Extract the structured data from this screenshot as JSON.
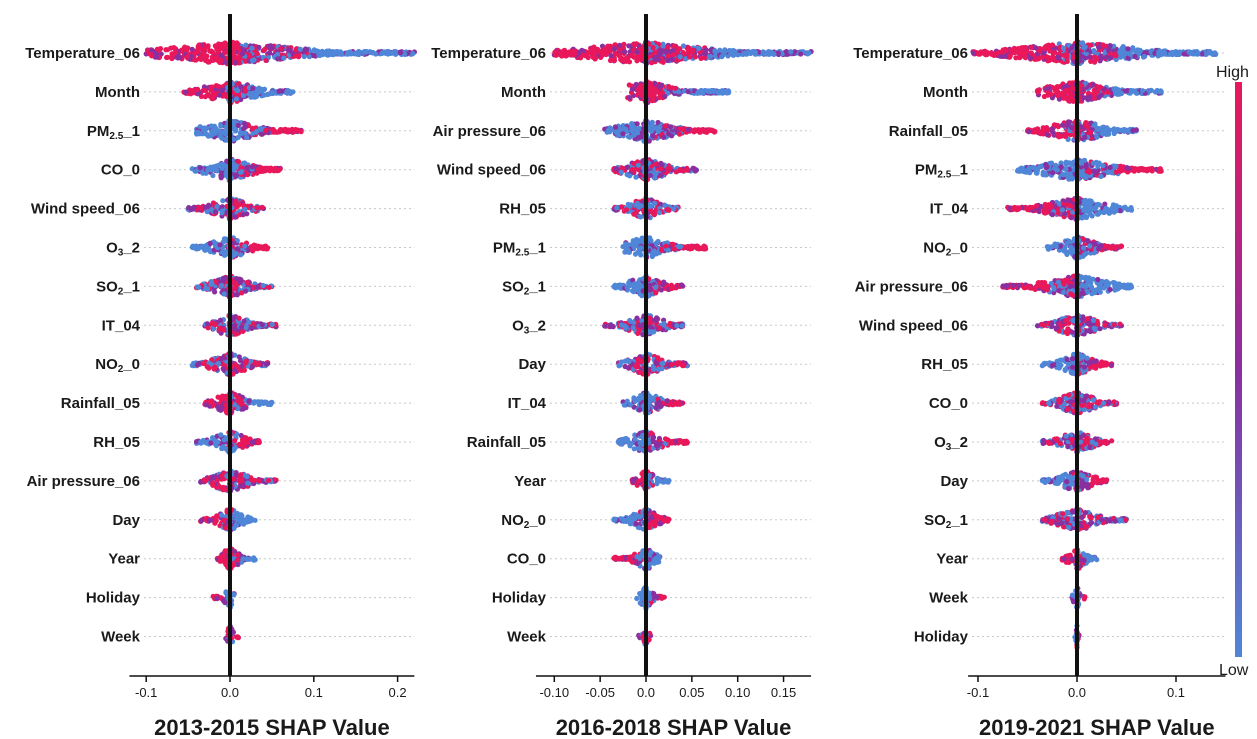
{
  "chart_data": [
    {
      "type": "scatter",
      "subtype": "shap-beeswarm",
      "xlabel": "2013-2015 SHAP Value",
      "xlim": [
        -0.12,
        0.22
      ],
      "xticks": [
        -0.1,
        0.0,
        0.1,
        0.2
      ],
      "xtick_labels": [
        "-0.1",
        "0.0",
        "0.1",
        "0.2"
      ],
      "features": [
        {
          "label": "Temperature_06",
          "min": -0.1,
          "max": 0.22,
          "lo_color": "high"
        },
        {
          "label": "Month",
          "min": -0.055,
          "max": 0.075,
          "lo_color": "high"
        },
        {
          "label": "PM2.5_1",
          "min": -0.04,
          "max": 0.085,
          "lo_color": "low"
        },
        {
          "label": "CO_0",
          "min": -0.045,
          "max": 0.06,
          "lo_color": "low"
        },
        {
          "label": "Wind speed_06",
          "min": -0.05,
          "max": 0.04,
          "lo_color": "mixed"
        },
        {
          "label": "O3_2",
          "min": -0.045,
          "max": 0.045,
          "lo_color": "low"
        },
        {
          "label": "SO2_1",
          "min": -0.04,
          "max": 0.05,
          "lo_color": "mixed"
        },
        {
          "label": "IT_04",
          "min": -0.03,
          "max": 0.055,
          "lo_color": "mixed"
        },
        {
          "label": "NO2_0",
          "min": -0.045,
          "max": 0.045,
          "lo_color": "mixed"
        },
        {
          "label": "Rainfall_05",
          "min": -0.03,
          "max": 0.05,
          "lo_color": "high"
        },
        {
          "label": "RH_05",
          "min": -0.04,
          "max": 0.035,
          "lo_color": "low"
        },
        {
          "label": "Air pressure_06",
          "min": -0.035,
          "max": 0.055,
          "lo_color": "mixed"
        },
        {
          "label": "Day",
          "min": -0.035,
          "max": 0.03,
          "lo_color": "high"
        },
        {
          "label": "Year",
          "min": -0.015,
          "max": 0.03,
          "lo_color": "high"
        },
        {
          "label": "Holiday",
          "min": -0.02,
          "max": 0.005,
          "lo_color": "high"
        },
        {
          "label": "Week",
          "min": -0.005,
          "max": 0.01,
          "lo_color": "mixed"
        }
      ]
    },
    {
      "type": "scatter",
      "subtype": "shap-beeswarm",
      "xlabel": "2016-2018 SHAP Value",
      "xlim": [
        -0.12,
        0.18
      ],
      "xticks": [
        -0.1,
        -0.05,
        0.0,
        0.05,
        0.1,
        0.15
      ],
      "xtick_labels": [
        "-0.10",
        "-0.05",
        "0.0",
        "0.05",
        "0.10",
        "0.15"
      ],
      "features": [
        {
          "label": "Temperature_06",
          "min": -0.1,
          "max": 0.18,
          "lo_color": "high"
        },
        {
          "label": "Month",
          "min": -0.02,
          "max": 0.09,
          "lo_color": "high"
        },
        {
          "label": "Air pressure_06",
          "min": -0.045,
          "max": 0.075,
          "lo_color": "low"
        },
        {
          "label": "Wind speed_06",
          "min": -0.035,
          "max": 0.055,
          "lo_color": "mixed"
        },
        {
          "label": "RH_05",
          "min": -0.035,
          "max": 0.035,
          "lo_color": "mixed"
        },
        {
          "label": "PM2.5_1",
          "min": -0.025,
          "max": 0.065,
          "lo_color": "low"
        },
        {
          "label": "SO2_1",
          "min": -0.035,
          "max": 0.04,
          "lo_color": "low"
        },
        {
          "label": "O3_2",
          "min": -0.045,
          "max": 0.04,
          "lo_color": "mixed"
        },
        {
          "label": "Day",
          "min": -0.03,
          "max": 0.045,
          "lo_color": "mixed"
        },
        {
          "label": "IT_04",
          "min": -0.025,
          "max": 0.04,
          "lo_color": "low"
        },
        {
          "label": "Rainfall_05",
          "min": -0.03,
          "max": 0.045,
          "lo_color": "low"
        },
        {
          "label": "Year",
          "min": -0.015,
          "max": 0.025,
          "lo_color": "high"
        },
        {
          "label": "NO2_0",
          "min": -0.035,
          "max": 0.025,
          "lo_color": "low"
        },
        {
          "label": "CO_0",
          "min": -0.035,
          "max": 0.015,
          "lo_color": "high"
        },
        {
          "label": "Holiday",
          "min": -0.01,
          "max": 0.02,
          "lo_color": "low"
        },
        {
          "label": "Week",
          "min": -0.008,
          "max": 0.005,
          "lo_color": "mixed"
        }
      ]
    },
    {
      "type": "scatter",
      "subtype": "shap-beeswarm",
      "xlabel": "2019-2021 SHAP Value",
      "xlim": [
        -0.11,
        0.15
      ],
      "xticks": [
        -0.1,
        0.0,
        0.1
      ],
      "xtick_labels": [
        "-0.1",
        "0.0",
        "0.1"
      ],
      "features": [
        {
          "label": "Temperature_06",
          "min": -0.105,
          "max": 0.14,
          "lo_color": "high"
        },
        {
          "label": "Month",
          "min": -0.04,
          "max": 0.085,
          "lo_color": "high"
        },
        {
          "label": "Rainfall_05",
          "min": -0.05,
          "max": 0.06,
          "lo_color": "high"
        },
        {
          "label": "PM2.5_1",
          "min": -0.06,
          "max": 0.085,
          "lo_color": "low"
        },
        {
          "label": "IT_04",
          "min": -0.07,
          "max": 0.055,
          "lo_color": "high"
        },
        {
          "label": "NO2_0",
          "min": -0.03,
          "max": 0.045,
          "lo_color": "low"
        },
        {
          "label": "Air pressure_06",
          "min": -0.075,
          "max": 0.055,
          "lo_color": "high"
        },
        {
          "label": "Wind speed_06",
          "min": -0.04,
          "max": 0.045,
          "lo_color": "mixed"
        },
        {
          "label": "RH_05",
          "min": -0.035,
          "max": 0.035,
          "lo_color": "low"
        },
        {
          "label": "CO_0",
          "min": -0.035,
          "max": 0.04,
          "lo_color": "mixed"
        },
        {
          "label": "O3_2",
          "min": -0.035,
          "max": 0.035,
          "lo_color": "mixed"
        },
        {
          "label": "Day",
          "min": -0.035,
          "max": 0.03,
          "lo_color": "low"
        },
        {
          "label": "SO2_1",
          "min": -0.035,
          "max": 0.05,
          "lo_color": "mixed"
        },
        {
          "label": "Year",
          "min": -0.015,
          "max": 0.02,
          "lo_color": "high"
        },
        {
          "label": "Week",
          "min": -0.005,
          "max": 0.008,
          "lo_color": "low"
        },
        {
          "label": "Holiday",
          "min": -0.002,
          "max": 0.002,
          "lo_color": "low"
        }
      ]
    }
  ],
  "colorbar": {
    "high_label": "High",
    "low_label": "Low",
    "high_color": "#e8185a",
    "low_color": "#4f86d8"
  },
  "colors": {
    "point_high": "#e8185a",
    "point_mid": "#8a2fa0",
    "point_low": "#4f86d8",
    "zero_line": "#111111"
  }
}
